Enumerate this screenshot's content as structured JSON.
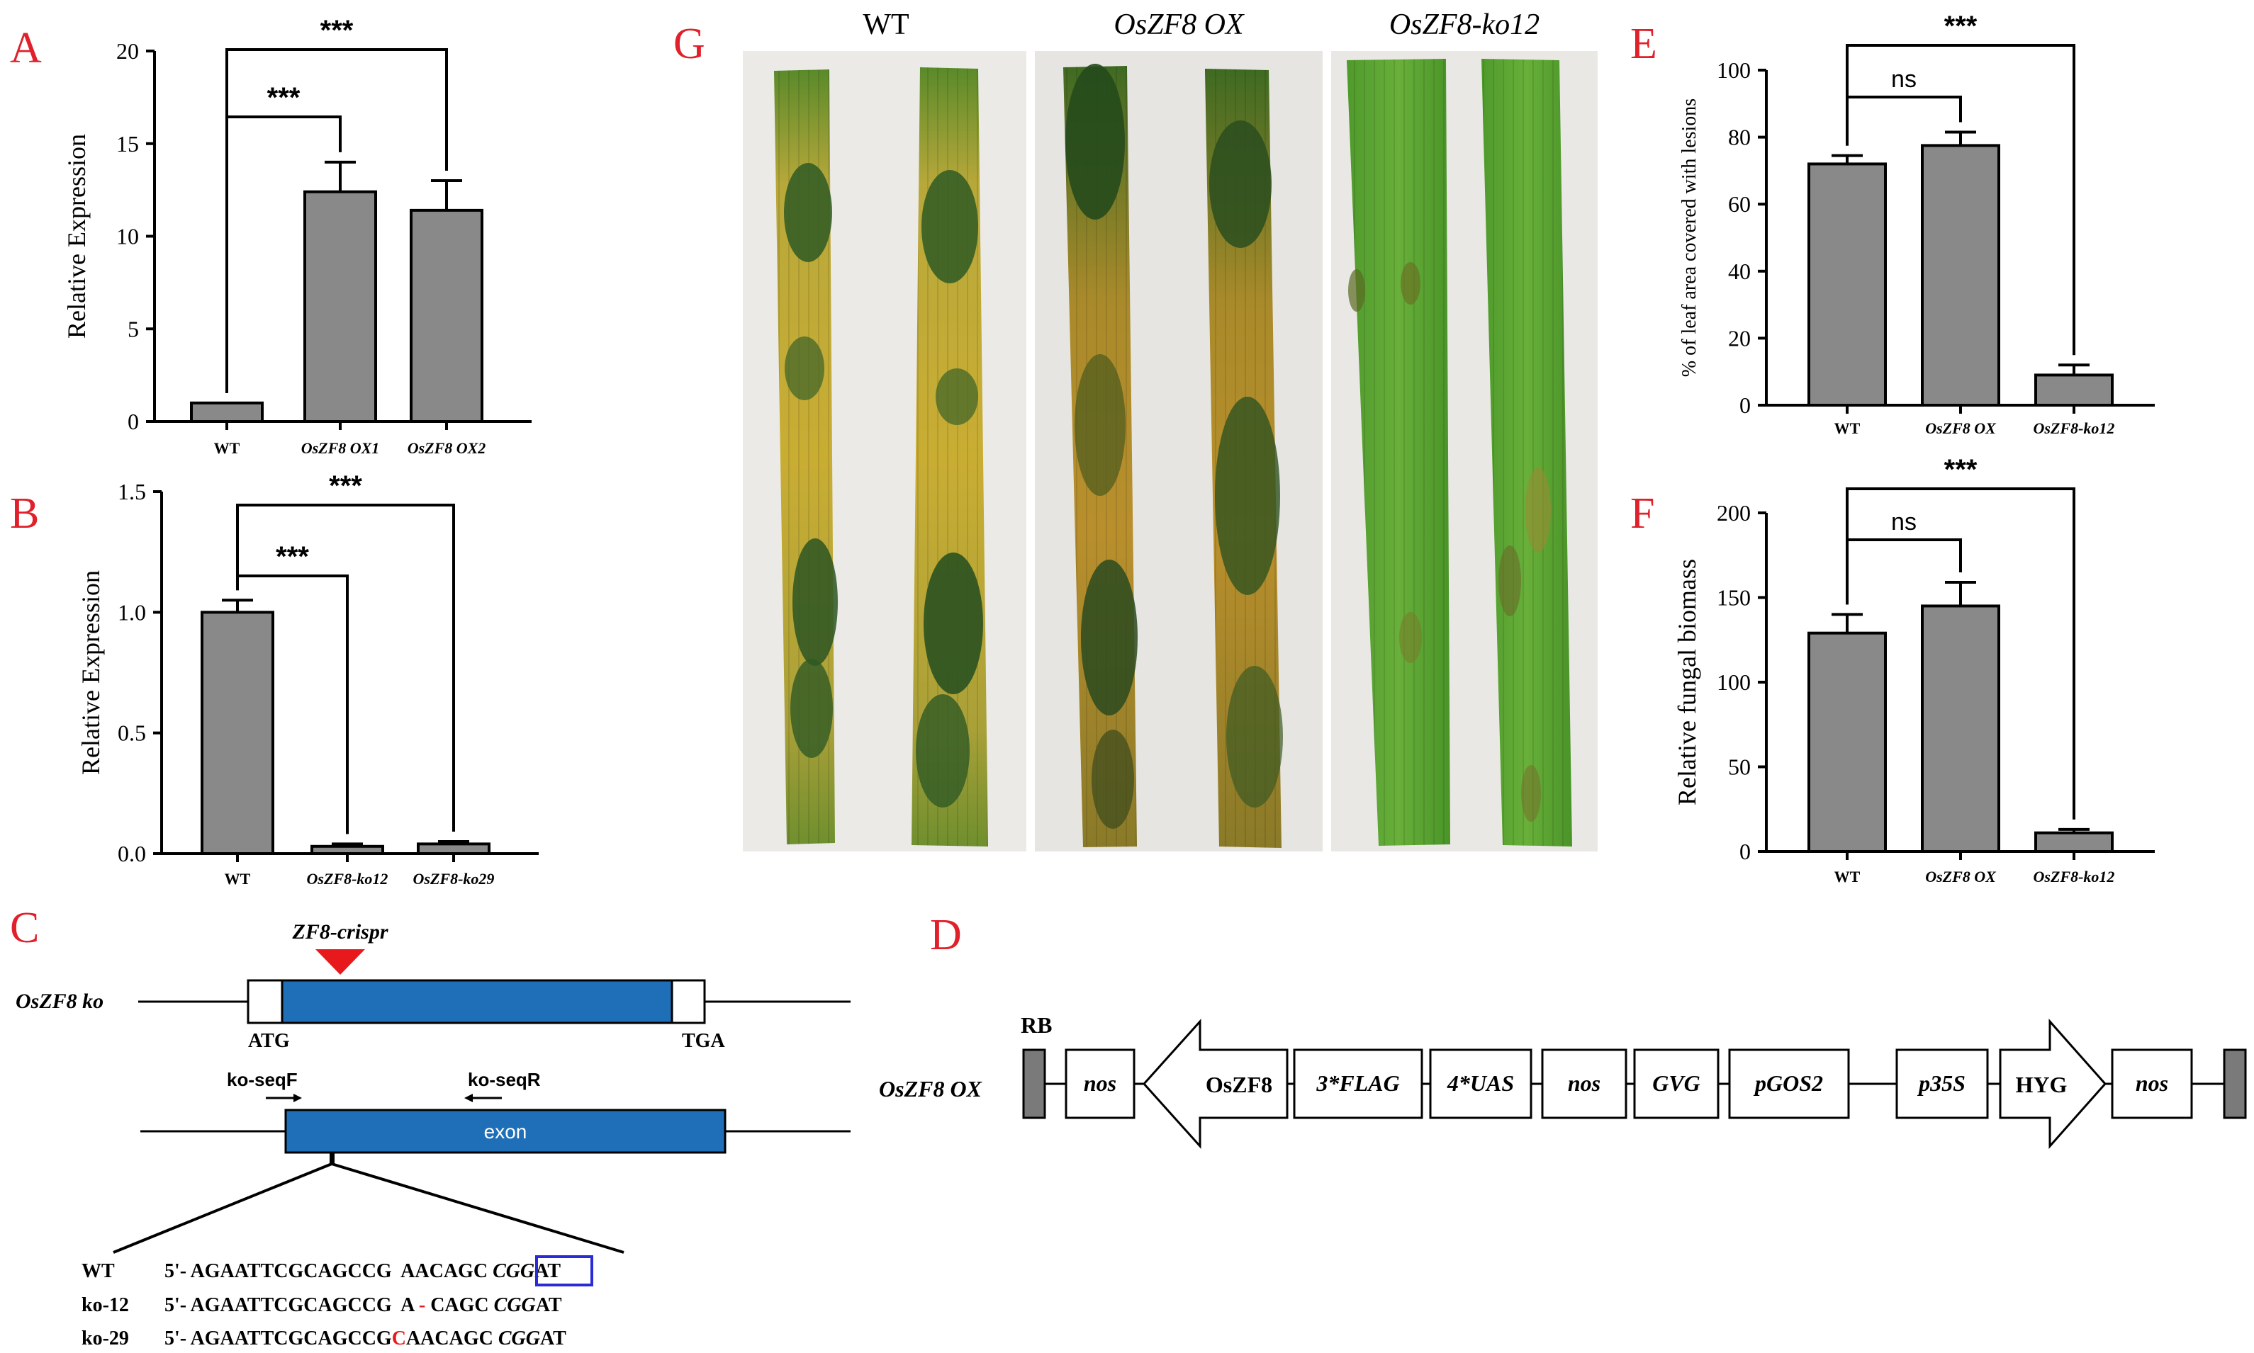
{
  "panels": {
    "A": "A",
    "B": "B",
    "C": "C",
    "D": "D",
    "E": "E",
    "F": "F",
    "G": "G"
  },
  "colors": {
    "panel_label": "#e0202a",
    "bar_fill": "#898989",
    "exon_blue": "#1f6fb8",
    "crispr_red": "#e8191c",
    "mut_red": "#e8191c",
    "pam_box": "#2a2ad6",
    "vector_rb_block": "#7a7a7a"
  },
  "chart_data": [
    {
      "id": "A",
      "type": "bar",
      "categories": [
        "WT",
        "OsZF8 OX1",
        "OsZF8 OX2"
      ],
      "category_italic": [
        false,
        true,
        true
      ],
      "values": [
        1.0,
        12.4,
        11.4
      ],
      "errors": [
        0.0,
        1.6,
        1.6
      ],
      "ylabel": "Relative Expression",
      "ylim": [
        0,
        20
      ],
      "yticks": [
        0,
        5,
        10,
        15,
        20
      ],
      "ytick_labels": [
        "0",
        "5",
        "10",
        "15",
        "20"
      ],
      "significance": [
        {
          "from": 0,
          "to": 1,
          "label": "***"
        },
        {
          "from": 0,
          "to": 2,
          "label": "***"
        }
      ]
    },
    {
      "id": "B",
      "type": "bar",
      "categories": [
        "WT",
        "OsZF8-ko12",
        "OsZF8-ko29"
      ],
      "category_italic": [
        false,
        true,
        true
      ],
      "values": [
        1.0,
        0.03,
        0.04
      ],
      "errors": [
        0.05,
        0.01,
        0.01
      ],
      "ylabel": "Relative Expression",
      "ylim": [
        0,
        1.5
      ],
      "yticks": [
        0,
        0.5,
        1.0,
        1.5
      ],
      "ytick_labels": [
        "0.0",
        "0.5",
        "1.0",
        "1.5"
      ],
      "significance": [
        {
          "from": 0,
          "to": 1,
          "label": "***"
        },
        {
          "from": 0,
          "to": 2,
          "label": "***"
        }
      ]
    },
    {
      "id": "E",
      "type": "bar",
      "categories": [
        "WT",
        "OsZF8 OX",
        "OsZF8-ko12"
      ],
      "category_italic": [
        false,
        true,
        true
      ],
      "values": [
        72,
        77.5,
        9
      ],
      "errors": [
        2.5,
        4,
        3
      ],
      "ylabel": "% of leaf area covered with lesions",
      "ylim": [
        0,
        100
      ],
      "yticks": [
        0,
        20,
        40,
        60,
        80,
        100
      ],
      "ytick_labels": [
        "0",
        "20",
        "40",
        "60",
        "80",
        "100"
      ],
      "significance": [
        {
          "from": 0,
          "to": 1,
          "label": "ns"
        },
        {
          "from": 0,
          "to": 2,
          "label": "***"
        }
      ]
    },
    {
      "id": "F",
      "type": "bar",
      "categories": [
        "WT",
        "OsZF8 OX",
        "OsZF8-ko12"
      ],
      "category_italic": [
        false,
        true,
        true
      ],
      "values": [
        129,
        145,
        11
      ],
      "errors": [
        11,
        14,
        2
      ],
      "ylabel": "Relative fungal biomass",
      "ylim": [
        0,
        200
      ],
      "yticks": [
        0,
        50,
        100,
        150,
        200
      ],
      "ytick_labels": [
        "0",
        "50",
        "100",
        "150",
        "200"
      ],
      "significance": [
        {
          "from": 0,
          "to": 1,
          "label": "ns"
        },
        {
          "from": 0,
          "to": 2,
          "label": "***"
        }
      ]
    }
  ],
  "photo": {
    "labels": [
      "WT",
      "OsZF8 OX",
      "OsZF8-ko12"
    ]
  },
  "crispr": {
    "gene": "OsZF8 ko",
    "guide": "ZF8-crispr",
    "start": "ATG",
    "stop": "TGA",
    "primer_f": "ko-seqF",
    "primer_r": "ko-seqR",
    "exon": "exon",
    "seq": {
      "wt_name": "WT",
      "wt_a": "5'- AGAATTCGCAGCCG  AACAGC ",
      "wt_pam": "CGG",
      "wt_c": "AT",
      "k12_name": "ko-12",
      "k12_a": "5'- AGAATTCGCAGCCG  A ",
      "k12_mut": "-",
      "k12_b": " CAGC ",
      "k12_pam": "CGG",
      "k12_c": "AT",
      "k29_name": "ko-29",
      "k29_a": "5'- AGAATTCGCAGCCG",
      "k29_mut": "C",
      "k29_b": "AACAGC ",
      "k29_pam": "CGG",
      "k29_c": "AT"
    }
  },
  "vector": {
    "name": "OsZF8 OX",
    "rb": "RB",
    "nos1": "nos",
    "zf8": "OsZF8",
    "flag": "3*FLAG",
    "uas": "4*UAS",
    "nos2": "nos",
    "gvg": "GVG",
    "pgos2": "pGOS2",
    "p35s": "p35S",
    "hyg": "HYG",
    "nos3": "nos"
  }
}
